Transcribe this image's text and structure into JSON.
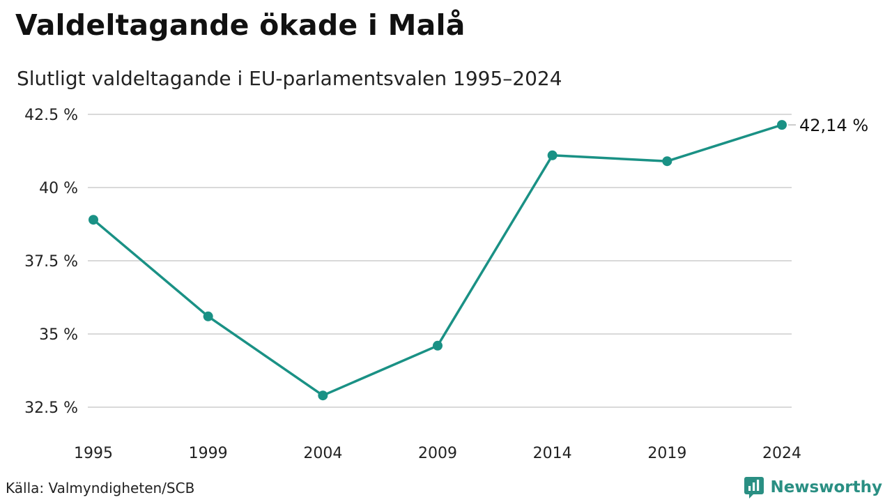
{
  "header": {
    "title": "Valdeltagande ökade i Malå",
    "subtitle": "Slutligt valdeltagande i EU-parlamentsvalen 1995–2024"
  },
  "footer": {
    "source": "Källa: Valmyndigheten/SCB",
    "brand": "Newsworthy",
    "brand_icon": "newsworthy-logo-icon"
  },
  "colors": {
    "line": "#1a9185",
    "grid": "#d9d9d9",
    "brand": "#2a8f83"
  },
  "chart_data": {
    "type": "line",
    "x": [
      "1995",
      "1999",
      "2004",
      "2009",
      "2014",
      "2019",
      "2024"
    ],
    "series": [
      {
        "values": [
          38.9,
          35.6,
          32.9,
          34.6,
          41.1,
          40.9,
          42.14
        ]
      }
    ],
    "yticks": [
      32.5,
      35,
      37.5,
      40,
      42.5
    ],
    "ytick_labels": [
      "32.5 %",
      "35 %",
      "37.5 %",
      "40 %",
      "42.5 %"
    ],
    "ylim": [
      32.5,
      42.5
    ],
    "grid": true,
    "end_label": "42,14 %"
  }
}
